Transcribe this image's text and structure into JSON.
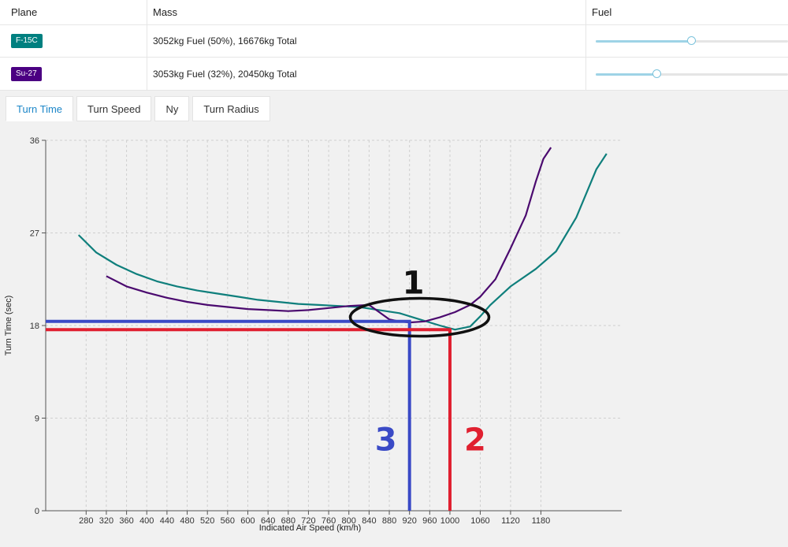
{
  "table": {
    "headers": {
      "plane": "Plane",
      "mass": "Mass",
      "fuel": "Fuel"
    },
    "rows": [
      {
        "plane": "F-15C",
        "plane_color": "#008080",
        "mass": "3052kg Fuel (50%), 16676kg Total",
        "fuel_fraction": 0.5
      },
      {
        "plane": "Su-27",
        "plane_color": "#4b0082",
        "mass": "3053kg Fuel (32%), 20450kg Total",
        "fuel_fraction": 0.32
      }
    ]
  },
  "tabs": [
    {
      "label": "Turn Time",
      "active": true
    },
    {
      "label": "Turn Speed",
      "active": false
    },
    {
      "label": "Ny",
      "active": false
    },
    {
      "label": "Turn Radius",
      "active": false
    }
  ],
  "chart_data": {
    "type": "line",
    "xlabel": "Indicated Air Speed (km/h)",
    "ylabel": "Turn Time (sec)",
    "xlim": [
      200,
      1340
    ],
    "ylim": [
      0,
      36
    ],
    "x_ticks": [
      280,
      320,
      360,
      400,
      440,
      480,
      520,
      560,
      600,
      640,
      680,
      720,
      760,
      800,
      840,
      880,
      920,
      960,
      1000,
      1060,
      1120,
      1180
    ],
    "y_ticks": [
      0,
      9,
      18,
      27,
      36
    ],
    "grid": true,
    "series": [
      {
        "name": "F-15C",
        "color": "#0f7f7c",
        "points": [
          [
            265,
            26.8
          ],
          [
            300,
            25.1
          ],
          [
            340,
            23.9
          ],
          [
            380,
            23.0
          ],
          [
            420,
            22.3
          ],
          [
            460,
            21.8
          ],
          [
            500,
            21.4
          ],
          [
            540,
            21.1
          ],
          [
            580,
            20.8
          ],
          [
            620,
            20.5
          ],
          [
            660,
            20.3
          ],
          [
            700,
            20.1
          ],
          [
            740,
            20.0
          ],
          [
            780,
            19.9
          ],
          [
            820,
            19.8
          ],
          [
            860,
            19.5
          ],
          [
            900,
            19.2
          ],
          [
            940,
            18.6
          ],
          [
            980,
            18.0
          ],
          [
            1010,
            17.6
          ],
          [
            1040,
            17.9
          ],
          [
            1060,
            18.9
          ],
          [
            1080,
            20.0
          ],
          [
            1120,
            21.8
          ],
          [
            1170,
            23.5
          ],
          [
            1210,
            25.2
          ],
          [
            1250,
            28.5
          ],
          [
            1290,
            33.2
          ],
          [
            1310,
            34.7
          ]
        ]
      },
      {
        "name": "Su-27",
        "color": "#4b0a6f",
        "points": [
          [
            320,
            22.8
          ],
          [
            360,
            21.8
          ],
          [
            400,
            21.2
          ],
          [
            440,
            20.7
          ],
          [
            480,
            20.3
          ],
          [
            520,
            20.0
          ],
          [
            560,
            19.8
          ],
          [
            600,
            19.6
          ],
          [
            640,
            19.5
          ],
          [
            680,
            19.4
          ],
          [
            720,
            19.5
          ],
          [
            760,
            19.7
          ],
          [
            800,
            19.9
          ],
          [
            840,
            20.0
          ],
          [
            860,
            19.3
          ],
          [
            880,
            18.6
          ],
          [
            900,
            18.4
          ],
          [
            920,
            18.3
          ],
          [
            950,
            18.4
          ],
          [
            980,
            18.8
          ],
          [
            1010,
            19.3
          ],
          [
            1040,
            20.0
          ],
          [
            1060,
            20.8
          ],
          [
            1090,
            22.5
          ],
          [
            1120,
            25.5
          ],
          [
            1150,
            28.7
          ],
          [
            1170,
            32.0
          ],
          [
            1185,
            34.2
          ],
          [
            1200,
            35.3
          ]
        ]
      }
    ],
    "annotations": [
      {
        "label": "1",
        "color": "#111111"
      },
      {
        "label": "2",
        "color": "#e02030",
        "x": 1000,
        "y": 17.6
      },
      {
        "label": "3",
        "color": "#3a4ac6",
        "x": 920,
        "y": 18.4
      }
    ]
  }
}
